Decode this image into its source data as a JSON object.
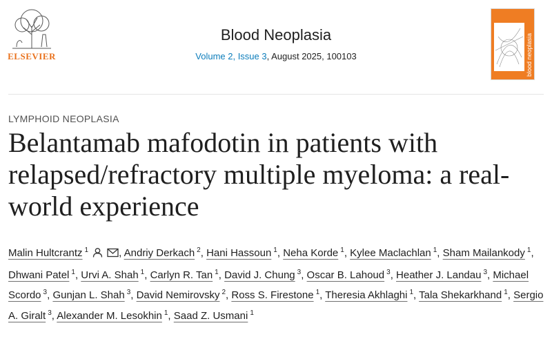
{
  "publisher": {
    "name": "ELSEVIER",
    "logo_icon": "elsevier-tree-icon"
  },
  "journal": {
    "title": "Blood Neoplasia",
    "volume_issue": "Volume 2, Issue 3",
    "date_article": ", August 2025, 100103",
    "cover_text": "blood neoplasia"
  },
  "article": {
    "section": "LYMPHOID NEOPLASIA",
    "title": "Belantamab mafodotin in patients with relapsed/refractory multiple myeloma: a real-world experience"
  },
  "authors": [
    {
      "name": "Malin Hultcrantz",
      "aff": "1"
    },
    {
      "name": "Andriy Derkach",
      "aff": "2"
    },
    {
      "name": "Hani Hassoun",
      "aff": "1"
    },
    {
      "name": "Neha Korde",
      "aff": "1"
    },
    {
      "name": "Kylee Maclachlan",
      "aff": "1"
    },
    {
      "name": "Sham Mailankody",
      "aff": "1"
    },
    {
      "name": "Dhwani Patel",
      "aff": "1"
    },
    {
      "name": "Urvi A. Shah",
      "aff": "1"
    },
    {
      "name": "Carlyn R. Tan",
      "aff": "1"
    },
    {
      "name": "David J. Chung",
      "aff": "3"
    },
    {
      "name": "Oscar B. Lahoud",
      "aff": "3"
    },
    {
      "name": "Heather J. Landau",
      "aff": "3"
    },
    {
      "name": "Michael Scordo",
      "aff": "3"
    },
    {
      "name": "Gunjan L. Shah",
      "aff": "3"
    },
    {
      "name": "David Nemirovsky",
      "aff": "2"
    },
    {
      "name": "Ross S. Firestone",
      "aff": "1"
    },
    {
      "name": "Theresia Akhlaghi",
      "aff": "1"
    },
    {
      "name": "Tala Shekarkhand",
      "aff": "1"
    },
    {
      "name": "Sergio A. Giralt",
      "aff": "3"
    },
    {
      "name": "Alexander M. Lesokhin",
      "aff": "1"
    },
    {
      "name": "Saad Z. Usmani",
      "aff": "1"
    }
  ],
  "icons": {
    "person": "person-icon",
    "email": "envelope-icon"
  },
  "colors": {
    "link": "#0c7dbb",
    "publisher_orange": "#e9711c",
    "cover_orange": "#ef7d23"
  }
}
